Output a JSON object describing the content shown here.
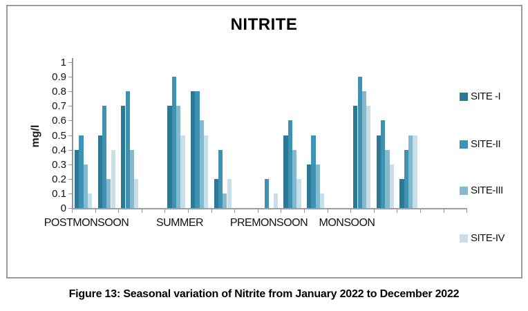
{
  "figure": {
    "caption": "Figure 13: Seasonal variation of Nitrite from January 2022 to December 2022"
  },
  "colors": {
    "site1": "#2E7897",
    "site2": "#3E93B2",
    "site3": "#85B9CE",
    "site4": "#C8DEE9",
    "axis": "#8f9499",
    "frame_border": "#9a9a9a"
  },
  "chart_data": {
    "type": "bar",
    "title": "NITRITE",
    "ylabel": "mg/l",
    "xlabel": "",
    "ylim": [
      0,
      1
    ],
    "ytick_step": 0.1,
    "yticks": [
      "1",
      "0.9",
      "0.8",
      "0.7",
      "0.6",
      "0.5",
      "0.4",
      "0.3",
      "0.2",
      "0.1",
      "0"
    ],
    "grid": false,
    "legend_position": "right",
    "categories": [
      "POSTMONSOON",
      "SUMMER",
      "PREMONSOON",
      "MONSOON"
    ],
    "groups_per_category": 3,
    "series": [
      {
        "name": "SITE -I",
        "color": "#2E7897",
        "values": [
          [
            0.4,
            0.5,
            0.7
          ],
          [
            0.7,
            0.8,
            0.2
          ],
          [
            0,
            0.5,
            0.3
          ],
          [
            0.7,
            0.5,
            0.2
          ]
        ]
      },
      {
        "name": "SITE-II",
        "color": "#3E93B2",
        "values": [
          [
            0.5,
            0.7,
            0.8
          ],
          [
            0.9,
            0.8,
            0.4
          ],
          [
            0.2,
            0.6,
            0.5
          ],
          [
            0.9,
            0.6,
            0.4
          ]
        ]
      },
      {
        "name": "SITE-III",
        "color": "#85B9CE",
        "values": [
          [
            0.3,
            0.2,
            0.4
          ],
          [
            0.7,
            0.6,
            0.1
          ],
          [
            0,
            0.4,
            0.3
          ],
          [
            0.8,
            0.4,
            0.5
          ]
        ]
      },
      {
        "name": "SITE-IV",
        "color": "#C8DEE9",
        "values": [
          [
            0.1,
            0.4,
            0.2
          ],
          [
            0.5,
            0.5,
            0.2
          ],
          [
            0.1,
            0.2,
            0.1
          ],
          [
            0.7,
            0.3,
            0.5
          ]
        ]
      }
    ]
  }
}
